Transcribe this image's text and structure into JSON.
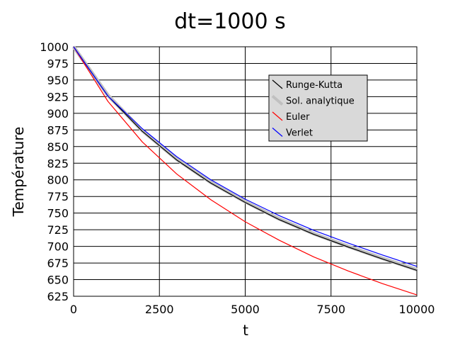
{
  "chart_data": {
    "type": "line",
    "title": "dt=1000 s",
    "xlabel": "t",
    "ylabel": "Température",
    "xlim": [
      0,
      10000
    ],
    "ylim": [
      625,
      1000
    ],
    "xticks": [
      0,
      2500,
      5000,
      7500,
      10000
    ],
    "yticks": [
      625,
      650,
      675,
      700,
      725,
      750,
      775,
      800,
      825,
      850,
      875,
      900,
      925,
      950,
      975,
      1000
    ],
    "grid": true,
    "legend_position": "top-right",
    "series": [
      {
        "name": "Runge-Kutta",
        "color": "#000000",
        "x": [
          0,
          1000,
          2000,
          3000,
          4000,
          5000,
          6000,
          7000,
          8000,
          9000,
          10000
        ],
        "y": [
          1000,
          926,
          873,
          830,
          795,
          766,
          740,
          718,
          699,
          681,
          664
        ]
      },
      {
        "name": "Sol. analytique",
        "color": "#c0c0c0",
        "x": [
          0,
          1000,
          2000,
          3000,
          4000,
          5000,
          6000,
          7000,
          8000,
          9000,
          10000
        ],
        "y": [
          1000,
          927,
          874,
          831,
          796,
          767,
          741,
          719,
          700,
          682,
          665
        ]
      },
      {
        "name": "Euler",
        "color": "#ff0000",
        "x": [
          0,
          1000,
          2000,
          3000,
          4000,
          5000,
          6000,
          7000,
          8000,
          9000,
          10000
        ],
        "y": [
          1000,
          918,
          857,
          809,
          770,
          737,
          709,
          684,
          663,
          644,
          627
        ]
      },
      {
        "name": "Verlet",
        "color": "#0000ff",
        "x": [
          0,
          1000,
          2000,
          3000,
          4000,
          5000,
          6000,
          7000,
          8000,
          9000,
          10000
        ],
        "y": [
          1000,
          926,
          877,
          835,
          800,
          771,
          746,
          724,
          705,
          687,
          670
        ]
      }
    ]
  }
}
